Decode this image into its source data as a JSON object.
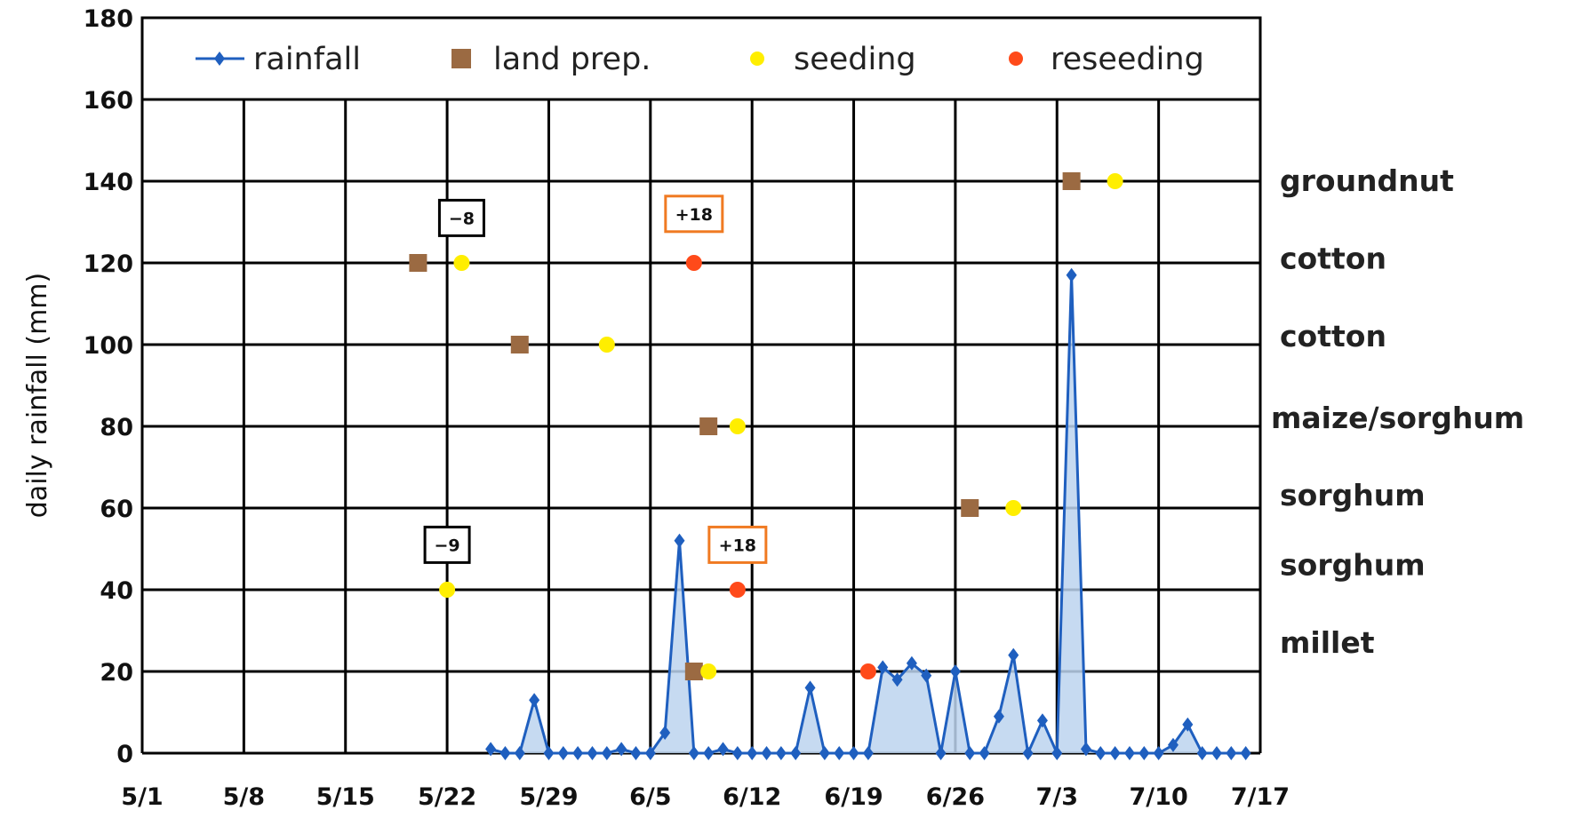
{
  "chart_data": {
    "type": "line",
    "title": "",
    "xlabel": "",
    "ylabel": "daily rainfall (mm)",
    "ylim": [
      0,
      180
    ],
    "yticks": [
      "0",
      "20",
      "40",
      "60",
      "80",
      "100",
      "120",
      "140",
      "160",
      "180"
    ],
    "xlim": [
      "5/1",
      "7/17"
    ],
    "xticks": [
      "5/1",
      "5/8",
      "5/15",
      "5/22",
      "5/29",
      "6/5",
      "6/12",
      "6/19",
      "6/26",
      "7/3",
      "7/10",
      "7/17"
    ],
    "grid": true,
    "legend_position": "top",
    "legend": [
      {
        "label": "rainfall",
        "marker": "line-diamond",
        "color": "#1f5fbf"
      },
      {
        "label": "land prep.",
        "marker": "square",
        "color": "#9b6a42"
      },
      {
        "label": "seeding",
        "marker": "circle",
        "color": "#ffee00"
      },
      {
        "label": "reseeding",
        "marker": "circle",
        "color": "#ff4a1a"
      }
    ],
    "series": [
      {
        "name": "rainfall",
        "x": [
          "5/25",
          "5/26",
          "5/27",
          "5/28",
          "5/29",
          "5/30",
          "5/31",
          "6/1",
          "6/2",
          "6/3",
          "6/4",
          "6/5",
          "6/6",
          "6/7",
          "6/8",
          "6/9",
          "6/10",
          "6/11",
          "6/12",
          "6/13",
          "6/14",
          "6/15",
          "6/16",
          "6/17",
          "6/18",
          "6/19",
          "6/20",
          "6/21",
          "6/22",
          "6/23",
          "6/24",
          "6/25",
          "6/26",
          "6/27",
          "6/28",
          "6/29",
          "6/30",
          "7/1",
          "7/2",
          "7/3",
          "7/4",
          "7/5",
          "7/6",
          "7/7",
          "7/8",
          "7/9",
          "7/10",
          "7/11",
          "7/12",
          "7/13",
          "7/14",
          "7/15",
          "7/16"
        ],
        "values": [
          1,
          0,
          0,
          13,
          0,
          0,
          0,
          0,
          0,
          1,
          0,
          0,
          5,
          52,
          0,
          0,
          1,
          0,
          0,
          0,
          0,
          0,
          16,
          0,
          0,
          0,
          0,
          21,
          18,
          22,
          19,
          0,
          20,
          0,
          0,
          9,
          24,
          0,
          8,
          0,
          117,
          1,
          0,
          0,
          0,
          0,
          0,
          2,
          7,
          0,
          0,
          0,
          0
        ]
      },
      {
        "name": "land prep.",
        "points": [
          [
            "5/20",
            120
          ],
          [
            "5/27",
            100
          ],
          [
            "6/8",
            20
          ],
          [
            "6/9",
            80
          ],
          [
            "6/27",
            60
          ],
          [
            "7/4",
            140
          ]
        ]
      },
      {
        "name": "seeding",
        "points": [
          [
            "5/22",
            40
          ],
          [
            "5/23",
            120
          ],
          [
            "6/2",
            100
          ],
          [
            "6/9",
            20
          ],
          [
            "6/11",
            80
          ],
          [
            "6/30",
            60
          ],
          [
            "7/7",
            140
          ]
        ]
      },
      {
        "name": "reseeding",
        "points": [
          [
            "6/8",
            120
          ],
          [
            "6/11",
            40
          ],
          [
            "6/20",
            20
          ]
        ]
      }
    ],
    "crop_labels": [
      {
        "text": "groundnut",
        "value": 140
      },
      {
        "text": "cotton",
        "value": 121
      },
      {
        "text": "cotton",
        "value": 102
      },
      {
        "text": "maize/sorghum",
        "value": 82
      },
      {
        "text": "sorghum",
        "value": 63
      },
      {
        "text": "sorghum",
        "value": 46
      },
      {
        "text": "millet",
        "value": 27
      }
    ],
    "annotations": [
      {
        "text": "−8",
        "x": "5/23",
        "y": 131,
        "border": "#000000"
      },
      {
        "text": "+18",
        "x": "6/8",
        "y": 132,
        "border": "#f07a22"
      },
      {
        "text": "−9",
        "x": "5/22",
        "y": 51,
        "border": "#000000"
      },
      {
        "text": "+18",
        "x": "6/11",
        "y": 51,
        "border": "#f07a22"
      }
    ]
  }
}
